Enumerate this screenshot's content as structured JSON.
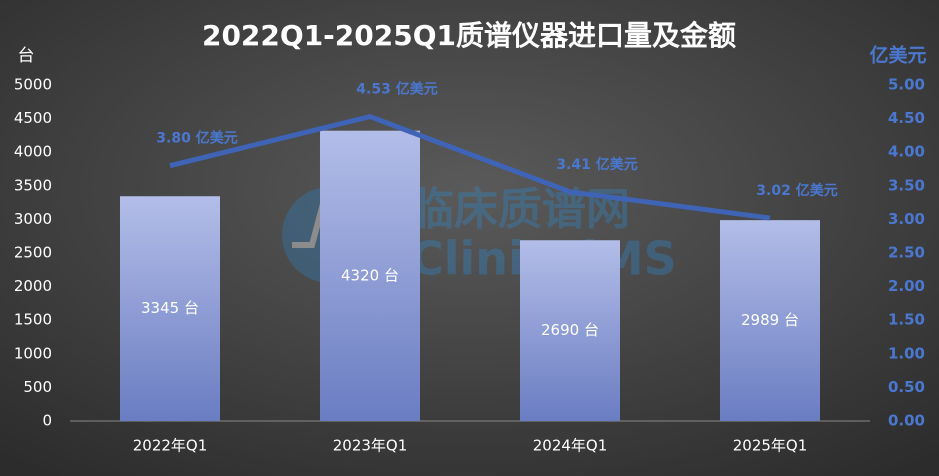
{
  "chart_data": {
    "type": "bar_line",
    "title": "2022Q1-2025Q1质谱仪器进口量及金额",
    "y_axis_label": "台",
    "y2_axis_label": "亿美元",
    "watermark": [
      "临床质谱网",
      "ClinicalMS"
    ],
    "categories": [
      "2022年Q1",
      "2023年Q1",
      "2024年Q1",
      "2025年Q1"
    ],
    "series": [
      {
        "type": "bar",
        "color": "#8595d4",
        "values": [
          3345,
          4320,
          2690,
          2989
        ],
        "value_labels": [
          "3345 台",
          "4320 台",
          "2690 台",
          "2989 台"
        ]
      },
      {
        "type": "line",
        "axis": "y2",
        "color": "#3f63b5",
        "values": [
          3.8,
          4.53,
          3.41,
          3.02
        ],
        "value_labels": [
          "3.80 亿美元",
          "4.53 亿美元",
          "3.41 亿美元",
          "3.02 亿美元"
        ]
      }
    ],
    "ylim": [
      0,
      5000
    ],
    "yticks": [
      0,
      500,
      1000,
      1500,
      2000,
      2500,
      3000,
      3500,
      4000,
      4500,
      5000
    ],
    "y2lim": [
      0,
      5
    ],
    "y2ticks": [
      {
        "value": 0,
        "label": "0.00"
      },
      {
        "value": 0.5,
        "label": "0.50"
      },
      {
        "value": 1,
        "label": "1.00"
      },
      {
        "value": 1.5,
        "label": "1.50"
      },
      {
        "value": 2,
        "label": "2.00"
      },
      {
        "value": 2.5,
        "label": "2.50"
      },
      {
        "value": 3,
        "label": "3.00"
      },
      {
        "value": 3.5,
        "label": "3.50"
      },
      {
        "value": 4,
        "label": "4.00"
      },
      {
        "value": 4.5,
        "label": "4.50"
      },
      {
        "value": 5,
        "label": "5.00"
      }
    ]
  }
}
